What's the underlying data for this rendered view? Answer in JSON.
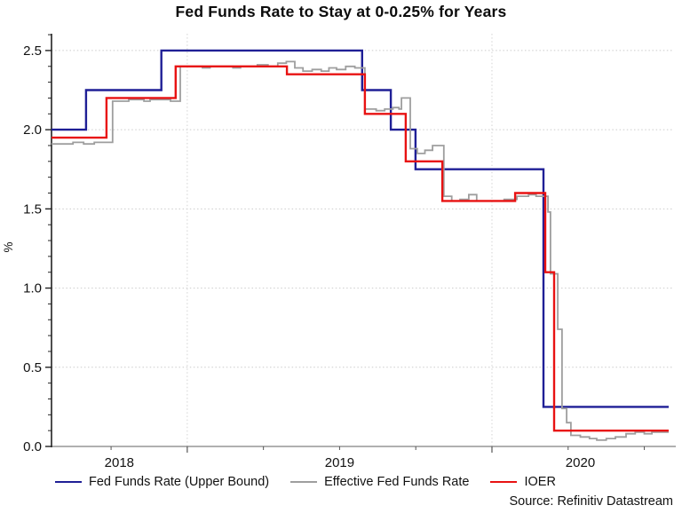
{
  "title": "Fed Funds Rate to Stay at 0-0.25% for Years",
  "source": "Source: Refinitiv Datastream",
  "legend": {
    "items": [
      {
        "label": "Fed Funds Rate (Upper Bound)",
        "color": "#1f1f96"
      },
      {
        "label": "Effective Fed Funds Rate",
        "color": "#9e9e9e"
      },
      {
        "label": "IOER",
        "color": "#e81212"
      }
    ]
  },
  "chart_data": {
    "type": "line",
    "title": "Fed Funds Rate to Stay at 0-0.25% for Years",
    "xlabel": "",
    "ylabel": "%",
    "x_unit": "calendar years (step/stair lines)",
    "xlim": [
      2018.5545,
      2020.58
    ],
    "ylim": [
      0,
      2.606
    ],
    "grid": "dotted horizontal at each 0.5, dotted vertical at year starts",
    "legend_position": "bottom",
    "y_ticks": [
      0.0,
      0.5,
      1.0,
      1.5,
      2.0,
      2.5
    ],
    "y_tick_labels": [
      "0.0",
      "0.5",
      "1.0",
      "1.5",
      "2.0",
      "2.5"
    ],
    "y_minor_tick_step": 0.1,
    "x_year_gridlines": [
      2019,
      2020
    ],
    "x_minor_ticks": [
      2018.75,
      2019.25,
      2019.5,
      2019.75,
      2020.25,
      2020.5
    ],
    "x_year_labels": [
      {
        "label": "2018",
        "center": 2018.777
      },
      {
        "label": "2019",
        "center": 2019.5
      },
      {
        "label": "2020",
        "center": 2020.29
      }
    ],
    "series": [
      {
        "name": "Fed Funds Rate (Upper Bound)",
        "color": "#1f1f96",
        "width": 2.4,
        "steps": [
          [
            2018.5545,
            2.0
          ],
          [
            2018.668,
            2.25
          ],
          [
            2018.915,
            2.5
          ],
          [
            2019.574,
            2.25
          ],
          [
            2019.668,
            2.0
          ],
          [
            2019.749,
            1.75
          ],
          [
            2020.169,
            0.25
          ]
        ]
      },
      {
        "name": "Effective Fed Funds Rate",
        "color": "#9e9e9e",
        "width": 1.8,
        "steps": [
          [
            2018.5545,
            1.91
          ],
          [
            2018.625,
            1.92
          ],
          [
            2018.66,
            1.91
          ],
          [
            2018.695,
            1.92
          ],
          [
            2018.755,
            2.18
          ],
          [
            2018.808,
            2.19
          ],
          [
            2018.858,
            2.18
          ],
          [
            2018.878,
            2.19
          ],
          [
            2018.945,
            2.18
          ],
          [
            2018.977,
            2.4
          ],
          [
            2019.05,
            2.39
          ],
          [
            2019.075,
            2.4
          ],
          [
            2019.15,
            2.39
          ],
          [
            2019.175,
            2.4
          ],
          [
            2019.23,
            2.41
          ],
          [
            2019.265,
            2.4
          ],
          [
            2019.297,
            2.42
          ],
          [
            2019.325,
            2.43
          ],
          [
            2019.353,
            2.39
          ],
          [
            2019.38,
            2.37
          ],
          [
            2019.41,
            2.38
          ],
          [
            2019.44,
            2.37
          ],
          [
            2019.465,
            2.39
          ],
          [
            2019.49,
            2.38
          ],
          [
            2019.52,
            2.4
          ],
          [
            2019.55,
            2.39
          ],
          [
            2019.583,
            2.13
          ],
          [
            2019.62,
            2.12
          ],
          [
            2019.648,
            2.13
          ],
          [
            2019.675,
            2.14
          ],
          [
            2019.695,
            2.13
          ],
          [
            2019.703,
            2.2
          ],
          [
            2019.732,
            1.88
          ],
          [
            2019.755,
            1.85
          ],
          [
            2019.78,
            1.87
          ],
          [
            2019.805,
            1.9
          ],
          [
            2019.842,
            1.58
          ],
          [
            2019.868,
            1.55
          ],
          [
            2019.895,
            1.56
          ],
          [
            2019.924,
            1.59
          ],
          [
            2019.95,
            1.55
          ],
          [
            2020.04,
            1.56
          ],
          [
            2020.082,
            1.58
          ],
          [
            2020.12,
            1.59
          ],
          [
            2020.145,
            1.58
          ],
          [
            2020.184,
            1.48
          ],
          [
            2020.192,
            1.09
          ],
          [
            2020.216,
            0.74
          ],
          [
            2020.23,
            0.24
          ],
          [
            2020.245,
            0.15
          ],
          [
            2020.259,
            0.07
          ],
          [
            2020.29,
            0.06
          ],
          [
            2020.32,
            0.05
          ],
          [
            2020.344,
            0.04
          ],
          [
            2020.375,
            0.05
          ],
          [
            2020.405,
            0.06
          ],
          [
            2020.44,
            0.08
          ],
          [
            2020.47,
            0.09
          ],
          [
            2020.5,
            0.08
          ],
          [
            2020.525,
            0.09
          ]
        ]
      },
      {
        "name": "IOER",
        "color": "#e81212",
        "width": 2.4,
        "steps": [
          [
            2018.5545,
            1.95
          ],
          [
            2018.735,
            2.2
          ],
          [
            2018.962,
            2.4
          ],
          [
            2019.327,
            2.35
          ],
          [
            2019.583,
            2.1
          ],
          [
            2019.717,
            1.8
          ],
          [
            2019.837,
            1.55
          ],
          [
            2020.076,
            1.6
          ],
          [
            2020.175,
            1.1
          ],
          [
            2020.204,
            0.1
          ]
        ]
      }
    ]
  }
}
